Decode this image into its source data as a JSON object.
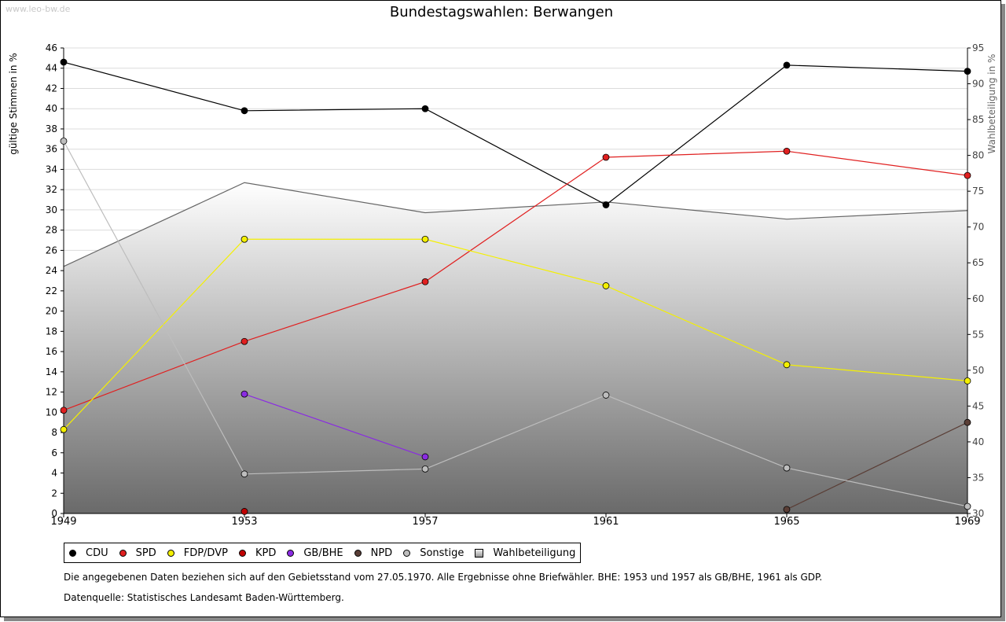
{
  "watermark": "www.leo-bw.de",
  "chart_data": {
    "type": "line",
    "title": "Bundestagswahlen: Berwangen",
    "ylabel": "gültige Stimmen in %",
    "y2label": "Wahlbeteiligung in %",
    "x": [
      1949,
      1953,
      1957,
      1961,
      1965,
      1969
    ],
    "ylim": [
      0,
      46
    ],
    "y2lim": [
      30,
      95
    ],
    "yticks": [
      0,
      2,
      4,
      6,
      8,
      10,
      12,
      14,
      16,
      18,
      20,
      22,
      24,
      26,
      28,
      30,
      32,
      34,
      36,
      38,
      40,
      42,
      44,
      46
    ],
    "y2ticks": [
      30,
      35,
      40,
      45,
      50,
      55,
      60,
      65,
      70,
      75,
      80,
      85,
      90,
      95
    ],
    "grid": true,
    "series": [
      {
        "name": "CDU",
        "color": "#000000",
        "values": [
          44.6,
          39.8,
          40.0,
          30.5,
          44.3,
          43.7
        ]
      },
      {
        "name": "SPD",
        "color": "#e02020",
        "values": [
          10.2,
          17.0,
          22.9,
          35.2,
          35.8,
          33.4
        ]
      },
      {
        "name": "FDP/DVP",
        "color": "#f4f000",
        "values": [
          8.3,
          27.1,
          27.1,
          22.5,
          14.7,
          13.1
        ]
      },
      {
        "name": "KPD",
        "color": "#c00000",
        "values": [
          null,
          0.2,
          null,
          null,
          null,
          null
        ]
      },
      {
        "name": "GB/BHE",
        "color": "#8a2be2",
        "values": [
          null,
          11.8,
          5.6,
          null,
          null,
          null
        ]
      },
      {
        "name": "NPD",
        "color": "#5a3e36",
        "values": [
          null,
          null,
          null,
          null,
          0.4,
          9.0
        ]
      },
      {
        "name": "Sonstige",
        "color": "#bdbdbd",
        "values": [
          36.8,
          3.9,
          4.4,
          11.7,
          4.5,
          0.7
        ]
      }
    ],
    "area": {
      "name": "Wahlbeteiligung",
      "axis": "right",
      "values": [
        64.5,
        76.2,
        72.0,
        73.5,
        71.1,
        72.3
      ]
    },
    "legend_position": "bottom-left"
  },
  "notes": {
    "line1": "Die angegebenen Daten beziehen sich auf den Gebietsstand vom 27.05.1970. Alle Ergebnisse ohne Briefwähler. BHE: 1953 und 1957 als GB/BHE, 1961 als GDP.",
    "line2": "Datenquelle: Statistisches Landesamt Baden-Württemberg."
  }
}
